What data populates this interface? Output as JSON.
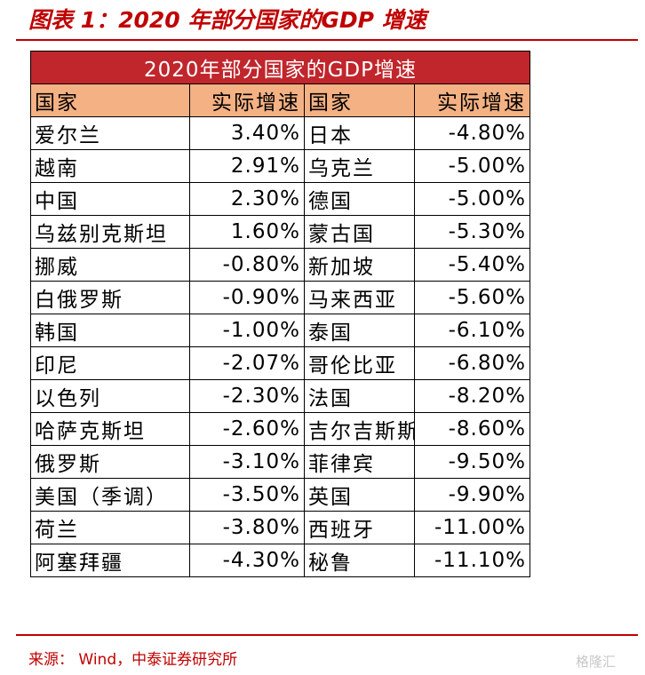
{
  "figure_title": "图表 1：2020 年部分国家的GDP 增速",
  "table": {
    "banner": "2020年部分国家的GDP增速",
    "headers": [
      "国家",
      "实际增速",
      "国家",
      "实际增速"
    ],
    "rows": [
      [
        "爱尔兰",
        "3.40%",
        "日本",
        "-4.80%"
      ],
      [
        "越南",
        "2.91%",
        "乌克兰",
        "-5.00%"
      ],
      [
        "中国",
        "2.30%",
        "德国",
        "-5.00%"
      ],
      [
        "乌兹别克斯坦",
        "1.60%",
        "蒙古国",
        "-5.30%"
      ],
      [
        "挪威",
        "-0.80%",
        "新加坡",
        "-5.40%"
      ],
      [
        "白俄罗斯",
        "-0.90%",
        "马来西亚",
        "-5.60%"
      ],
      [
        "韩国",
        "-1.00%",
        "泰国",
        "-6.10%"
      ],
      [
        "印尼",
        "-2.07%",
        "哥伦比亚",
        "-6.80%"
      ],
      [
        "以色列",
        "-2.30%",
        "法国",
        "-8.20%"
      ],
      [
        "哈萨克斯坦",
        "-2.60%",
        "吉尔吉斯斯坦",
        "-8.60%"
      ],
      [
        "俄罗斯",
        "-3.10%",
        "菲律宾",
        "-9.50%"
      ],
      [
        "美国（季调）",
        "-3.50%",
        "英国",
        "-9.90%"
      ],
      [
        "荷兰",
        "-3.80%",
        "西班牙",
        "-11.00%"
      ],
      [
        "阿塞拜疆",
        "-4.30%",
        "秘鲁",
        "-11.10%"
      ]
    ]
  },
  "source": "来源：  Wind，中泰证券研究所",
  "watermark": "格隆汇",
  "colors": {
    "accent_red": "#c00000",
    "banner_red": "#c0262c",
    "header_orange": "#f4b183"
  }
}
